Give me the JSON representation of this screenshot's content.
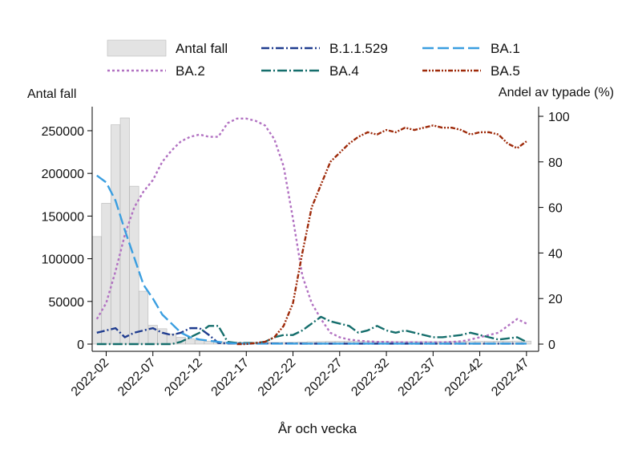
{
  "chart_data": {
    "type": "bar+line",
    "xlabel": "År och vecka",
    "ylabel_left": "Antal fall",
    "ylabel_right": "Andel av typade (%)",
    "x_start_week": 1,
    "x_end_week": 48,
    "x_ticks": [
      {
        "week": 2,
        "label": "2022-02"
      },
      {
        "week": 7,
        "label": "2022-07"
      },
      {
        "week": 12,
        "label": "2022-12"
      },
      {
        "week": 17,
        "label": "2022-17"
      },
      {
        "week": 22,
        "label": "2022-22"
      },
      {
        "week": 27,
        "label": "2022-27"
      },
      {
        "week": 32,
        "label": "2022-32"
      },
      {
        "week": 37,
        "label": "2022-37"
      },
      {
        "week": 42,
        "label": "2022-42"
      },
      {
        "week": 47,
        "label": "2022-47"
      }
    ],
    "ylim_left": [
      0,
      265000
    ],
    "yticks_left": [
      0,
      50000,
      100000,
      150000,
      200000,
      250000
    ],
    "ylim_right": [
      0,
      100
    ],
    "yticks_right": [
      0,
      20,
      40,
      60,
      80,
      100
    ],
    "legend_position": "top",
    "bars": {
      "name": "Antal fall",
      "color": "#e3e3e3",
      "weeks": [
        1,
        2,
        3,
        4,
        5,
        6,
        7,
        8,
        9,
        10,
        11,
        12,
        13,
        14,
        15,
        16,
        17,
        18,
        19,
        20,
        21,
        22,
        23,
        24,
        25,
        26,
        27,
        28,
        29,
        30,
        31,
        32,
        33,
        34,
        35,
        36,
        37,
        38,
        39,
        40,
        41,
        42,
        43,
        44,
        45,
        46,
        47
      ],
      "values": [
        126000,
        165000,
        257000,
        265000,
        185000,
        62000,
        22000,
        18000,
        12000,
        8000,
        6000,
        4500,
        3500,
        3000,
        2500,
        2200,
        2000,
        2000,
        2000,
        2000,
        2000,
        2200,
        2500,
        2800,
        3000,
        3200,
        3300,
        3400,
        3300,
        3200,
        3100,
        3000,
        3000,
        3000,
        3000,
        3000,
        3000,
        3000,
        3000,
        3000,
        3100,
        3200,
        3300,
        3400,
        3500,
        3600,
        3600
      ]
    },
    "series": [
      {
        "name": "BA.2",
        "color": "#b272c2",
        "dash": "3 3",
        "weeks": [
          1,
          2,
          3,
          4,
          5,
          6,
          7,
          8,
          9,
          10,
          11,
          12,
          13,
          14,
          15,
          16,
          17,
          18,
          19,
          20,
          21,
          22,
          23,
          24,
          25,
          26,
          27,
          28,
          29,
          30,
          31,
          32,
          33,
          34,
          35,
          36,
          37,
          38,
          39,
          40,
          41,
          42,
          43,
          44,
          45,
          46,
          47
        ],
        "values": [
          11,
          18,
          32,
          48,
          60,
          67,
          72,
          80,
          85,
          89,
          91,
          92,
          91,
          91,
          97,
          99,
          99,
          98,
          96,
          90,
          78,
          55,
          30,
          18,
          11,
          5,
          3,
          2,
          1.5,
          1.2,
          1,
          1,
          0.8,
          0.8,
          0.8,
          0.8,
          0.8,
          0.8,
          1,
          1.2,
          2,
          3,
          4,
          5,
          8,
          11,
          9
        ]
      },
      {
        "name": "B.1.1.529",
        "color": "#1f3c8f",
        "dash": "10 3 2 3",
        "weeks": [
          1,
          2,
          3,
          4,
          5,
          6,
          7,
          8,
          9,
          10,
          11,
          12,
          13,
          14,
          15,
          16,
          17,
          18,
          19,
          20,
          21,
          22,
          23,
          24,
          25,
          26,
          27,
          28,
          29,
          30,
          31,
          32,
          33,
          34,
          35,
          36,
          37,
          38,
          39,
          40,
          41,
          42,
          43,
          44,
          45,
          46,
          47
        ],
        "values": [
          5,
          6,
          7,
          3,
          5,
          6,
          7,
          5,
          4,
          5,
          7,
          7,
          4,
          0.5,
          0.3,
          0.3,
          0.3,
          0.3,
          0.3,
          0.3,
          0.3,
          0.3,
          0.2,
          0.2,
          0.2,
          0.2,
          0.2,
          0.2,
          0.2,
          0.2,
          0.2,
          0.2,
          0.2,
          0.2,
          0.2,
          0.2,
          0.2,
          0.2,
          0.2,
          0.2,
          0.2,
          0.2,
          0.2,
          0.2,
          0.2,
          0.2,
          0.2
        ]
      },
      {
        "name": "BA.4",
        "color": "#156e6c",
        "dash": "12 3 2 3",
        "weeks": [
          1,
          2,
          3,
          4,
          5,
          6,
          7,
          8,
          9,
          10,
          11,
          12,
          13,
          14,
          15,
          16,
          17,
          18,
          19,
          20,
          21,
          22,
          23,
          24,
          25,
          26,
          27,
          28,
          29,
          30,
          31,
          32,
          33,
          34,
          35,
          36,
          37,
          38,
          39,
          40,
          41,
          42,
          43,
          44,
          45,
          46,
          47
        ],
        "values": [
          0,
          0,
          0,
          0,
          0,
          0,
          0,
          0,
          0,
          1,
          3,
          5,
          8,
          8,
          1,
          0.5,
          0.5,
          0.5,
          1,
          3,
          4,
          4,
          6,
          9,
          12,
          10,
          9,
          8,
          5,
          6,
          8,
          6,
          5,
          6,
          5,
          4,
          3,
          3,
          3.5,
          4,
          5,
          4,
          3,
          2,
          2.5,
          3,
          1
        ]
      },
      {
        "name": "BA.1",
        "color": "#3a9ee0",
        "dash": "14 5",
        "weeks": [
          1,
          2,
          3,
          4,
          5,
          6,
          7,
          8,
          9,
          10,
          11,
          12,
          13,
          14,
          15,
          16,
          17,
          18,
          19,
          20,
          21,
          22,
          23,
          24,
          25,
          26,
          27,
          28,
          29,
          30,
          31,
          32,
          33,
          34,
          35,
          36,
          37,
          38,
          39,
          40,
          41,
          42,
          43,
          44,
          45,
          46,
          47
        ],
        "values": [
          74,
          71,
          63,
          50,
          38,
          26,
          20,
          13,
          9,
          5,
          3,
          2,
          1.5,
          1,
          0.5,
          0.3,
          0.2,
          0.2,
          0.2,
          0.2,
          0.2,
          0.2,
          0.2,
          0.2,
          0.2,
          0.2,
          0.2,
          0.2,
          0.2,
          0.2,
          0.2,
          0.2,
          0.2,
          0.2,
          0.2,
          0.2,
          0.2,
          0.2,
          0.2,
          0.2,
          0.2,
          0.2,
          0.2,
          0.2,
          0.2,
          0.2,
          0.2
        ]
      },
      {
        "name": "BA.5",
        "color": "#9e2a0a",
        "dash": "6 2 2 2 2 2",
        "weeks": [
          16,
          17,
          18,
          19,
          20,
          21,
          22,
          23,
          24,
          25,
          26,
          27,
          28,
          29,
          30,
          31,
          32,
          33,
          34,
          35,
          36,
          37,
          38,
          39,
          40,
          41,
          42,
          43,
          44,
          45,
          46,
          47
        ],
        "values": [
          0,
          0,
          0.5,
          1,
          3,
          8,
          18,
          40,
          60,
          70,
          80,
          84,
          88,
          91,
          93,
          92,
          94,
          93,
          95,
          94,
          95,
          96,
          95,
          95,
          94,
          92,
          93,
          93,
          92,
          88,
          86,
          89
        ]
      }
    ],
    "legend_order": [
      "Antal fall",
      "B.1.1.529",
      "BA.1",
      "BA.2",
      "BA.4",
      "BA.5"
    ]
  }
}
